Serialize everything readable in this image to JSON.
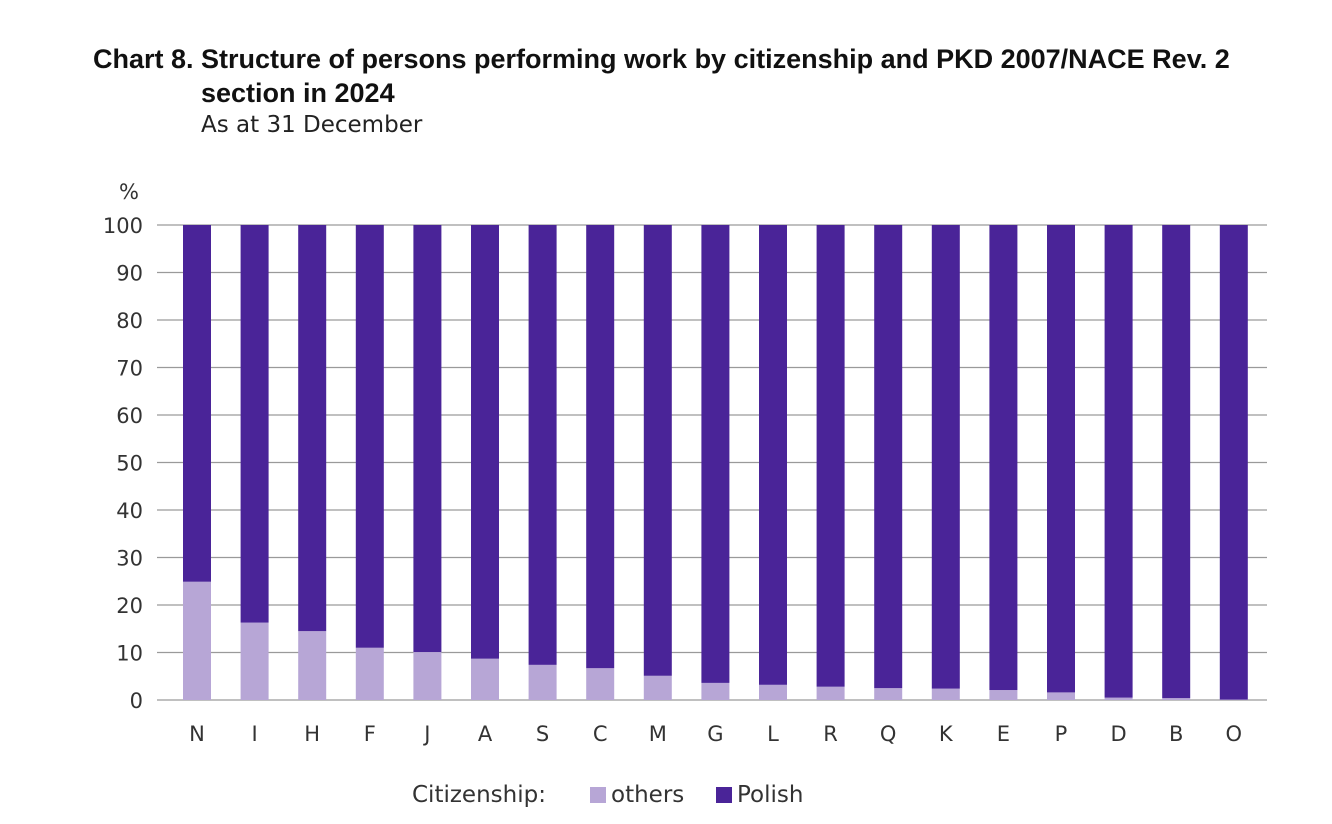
{
  "header": {
    "chart_label": "Chart 8.",
    "title": "Structure of persons performing work by citizenship and PKD 2007/NACE Rev. 2 section in 2024",
    "subtitle": "As at 31 December"
  },
  "legend": {
    "title": "Citizenship:",
    "items": [
      {
        "label": "others",
        "color": "#b7a6d6"
      },
      {
        "label": "Polish",
        "color": "#4a2498"
      }
    ]
  },
  "colors": {
    "others": "#b7a6d6",
    "polish": "#4a2498",
    "grid": "#9a9a9a",
    "text": "#333333"
  },
  "chart_data": {
    "type": "bar",
    "stacked": true,
    "title": "Structure of persons performing work by citizenship and PKD 2007/NACE Rev. 2 section in 2024",
    "subtitle": "As at 31 December",
    "ylabel": "%",
    "xlabel": "",
    "ylim": [
      0,
      100
    ],
    "yticks": [
      0,
      10,
      20,
      30,
      40,
      50,
      60,
      70,
      80,
      90,
      100
    ],
    "grid": true,
    "legend_position": "bottom",
    "categories": [
      "N",
      "I",
      "H",
      "F",
      "J",
      "A",
      "S",
      "C",
      "M",
      "G",
      "L",
      "R",
      "Q",
      "K",
      "E",
      "P",
      "D",
      "B",
      "O"
    ],
    "series": [
      {
        "name": "others",
        "color": "#b7a6d6",
        "values": [
          24.9,
          16.3,
          14.5,
          11.0,
          10.1,
          8.7,
          7.4,
          6.7,
          5.1,
          3.6,
          3.2,
          2.8,
          2.5,
          2.4,
          2.1,
          1.6,
          0.5,
          0.4,
          0.1
        ]
      },
      {
        "name": "Polish",
        "color": "#4a2498",
        "values": [
          75.1,
          83.7,
          85.5,
          89.0,
          89.9,
          91.3,
          92.6,
          93.3,
          94.9,
          96.4,
          96.8,
          97.2,
          97.5,
          97.6,
          97.9,
          98.4,
          99.5,
          99.6,
          99.9
        ]
      }
    ]
  }
}
